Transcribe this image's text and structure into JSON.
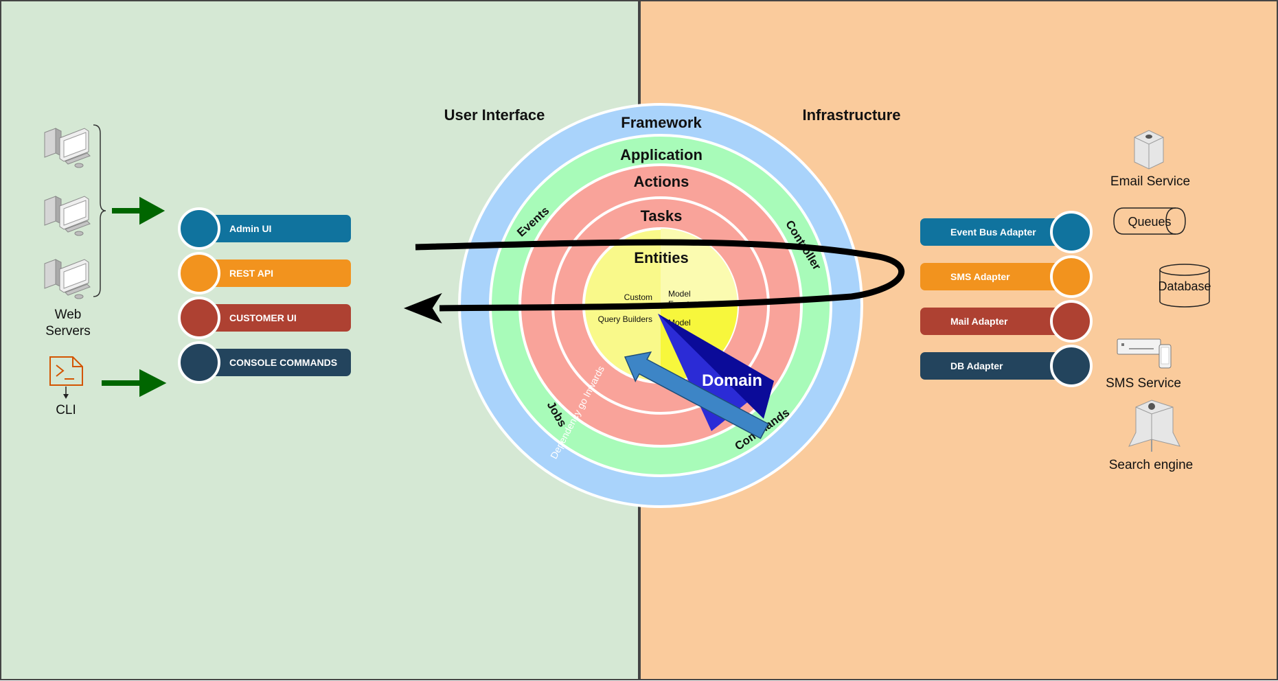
{
  "sections": {
    "left_title": "User Interface",
    "right_title": "Infrastructure"
  },
  "rings": {
    "framework": "Framework",
    "application": "Application",
    "actions": "Actions",
    "tasks": "Tasks",
    "entities": "Entities",
    "events": "Events",
    "controller": "Controller",
    "jobs": "Jobs",
    "commands": "Commands"
  },
  "core": {
    "custom": "Custom",
    "model": "Model",
    "event": "Event",
    "query_builders": "Query Builders",
    "model2": "Model"
  },
  "domain_label": "Domain",
  "dependency_label": "Dependency go Inwards",
  "left_devices": {
    "web_servers_1": "Web",
    "web_servers_2": "Servers",
    "cli": "CLI"
  },
  "ui_pills": [
    "Admin UI",
    "REST API",
    "CUSTOMER UI",
    "CONSOLE COMMANDS"
  ],
  "adapters": [
    "Event Bus Adapter",
    "SMS Adapter",
    "Mail Adapter",
    "DB Adapter"
  ],
  "services": {
    "email": "Email Service",
    "queues": "Queues",
    "database": "Database",
    "sms": "SMS Service",
    "search": "Search engine"
  },
  "colors": {
    "left_bg": "#d5e8d4",
    "right_bg": "#facb9c",
    "framework": "#a9d3fb",
    "application": "#a8fbb9",
    "actions": "#f9a39a",
    "entities": "#f9fb8a",
    "blue": "#10739e",
    "orange": "#f2931e",
    "red": "#ae4132",
    "navy": "#23445d",
    "domain": "#2b2bd6",
    "arrow_green": "#006600",
    "dependency": "#3d85c6"
  }
}
